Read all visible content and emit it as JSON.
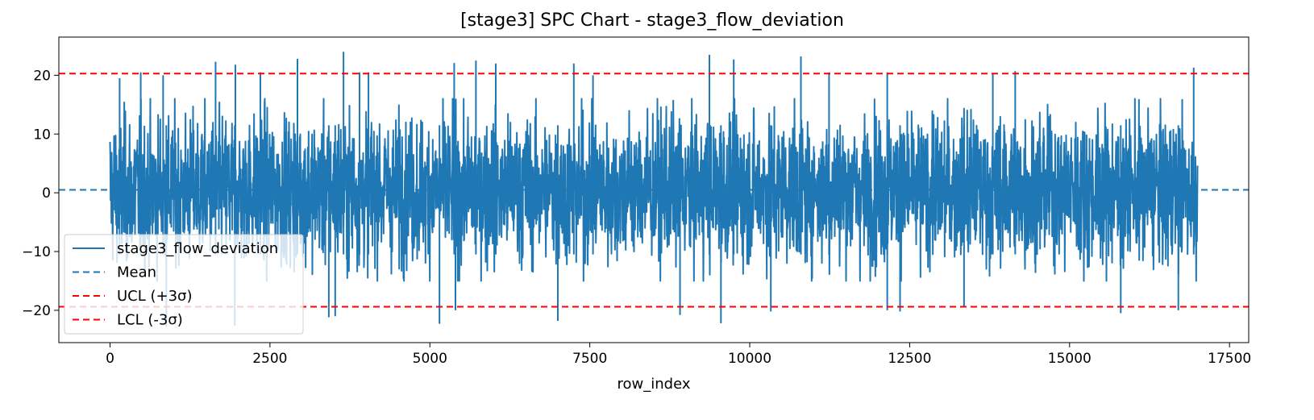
{
  "chart_data": {
    "type": "line",
    "title": "[stage3] SPC Chart - stage3_flow_deviation",
    "xlabel": "row_index",
    "ylabel": "",
    "xlim": [
      -800,
      17800
    ],
    "ylim": [
      -25.5,
      26.5
    ],
    "x_ticks": [
      0,
      2500,
      5000,
      7500,
      10000,
      12500,
      15000,
      17500
    ],
    "x_tick_labels": [
      "0",
      "2500",
      "5000",
      "7500",
      "10000",
      "12500",
      "15000",
      "17500"
    ],
    "y_ticks": [
      -20,
      -10,
      0,
      10,
      20
    ],
    "y_tick_labels": [
      "−20",
      "−10",
      "0",
      "10",
      "20"
    ],
    "series": [
      {
        "name": "stage3_flow_deviation",
        "color": "#1f77b4",
        "style": "solid",
        "x_range": [
          0,
          17000
        ],
        "n_points": 17000,
        "typical_band": [
          -13.5,
          14.5
        ],
        "observed_max": 24.0,
        "observed_min": -22.5,
        "spikes": [
          {
            "x": 150,
            "y": 19.5
          },
          {
            "x": 480,
            "y": 20.5
          },
          {
            "x": 830,
            "y": 20.0
          },
          {
            "x": 1650,
            "y": 22.3
          },
          {
            "x": 1960,
            "y": 21.8
          },
          {
            "x": 2350,
            "y": 20.5
          },
          {
            "x": 2930,
            "y": 22.8
          },
          {
            "x": 3650,
            "y": 24.0
          },
          {
            "x": 3900,
            "y": 20.5
          },
          {
            "x": 4040,
            "y": 20.5
          },
          {
            "x": 5380,
            "y": 22.1
          },
          {
            "x": 5720,
            "y": 22.5
          },
          {
            "x": 6030,
            "y": 22.0
          },
          {
            "x": 7250,
            "y": 22.0
          },
          {
            "x": 7550,
            "y": 20.0
          },
          {
            "x": 9370,
            "y": 23.5
          },
          {
            "x": 9750,
            "y": 22.7
          },
          {
            "x": 10800,
            "y": 23.2
          },
          {
            "x": 11240,
            "y": 20.5
          },
          {
            "x": 12150,
            "y": 20.5
          },
          {
            "x": 13800,
            "y": 20.2
          },
          {
            "x": 14150,
            "y": 20.7
          },
          {
            "x": 16940,
            "y": 21.3
          },
          {
            "x": 880,
            "y": -22.8
          },
          {
            "x": 1950,
            "y": -22.6
          },
          {
            "x": 3420,
            "y": -21.2
          },
          {
            "x": 3520,
            "y": -21.0
          },
          {
            "x": 5150,
            "y": -22.3
          },
          {
            "x": 5400,
            "y": -20.0
          },
          {
            "x": 7000,
            "y": -21.8
          },
          {
            "x": 8910,
            "y": -20.8
          },
          {
            "x": 9550,
            "y": -22.2
          },
          {
            "x": 10330,
            "y": -20.2
          },
          {
            "x": 12150,
            "y": -20.0
          },
          {
            "x": 12350,
            "y": -20.2
          },
          {
            "x": 13350,
            "y": -19.5
          },
          {
            "x": 15800,
            "y": -20.5
          },
          {
            "x": 16700,
            "y": -20.0
          }
        ]
      },
      {
        "name": "Mean",
        "color": "#1f77b4",
        "style": "dashed",
        "y": 0.5
      },
      {
        "name": "UCL (+3σ)",
        "color": "#ff0000",
        "style": "dashed",
        "y": 20.3
      },
      {
        "name": "LCL (-3σ)",
        "color": "#ff0000",
        "style": "dashed",
        "y": -19.4
      }
    ],
    "legend": {
      "position": "lower-left",
      "entries": [
        "stage3_flow_deviation",
        "Mean",
        "UCL (+3σ)",
        "LCL (-3σ)"
      ]
    },
    "grid": false
  }
}
